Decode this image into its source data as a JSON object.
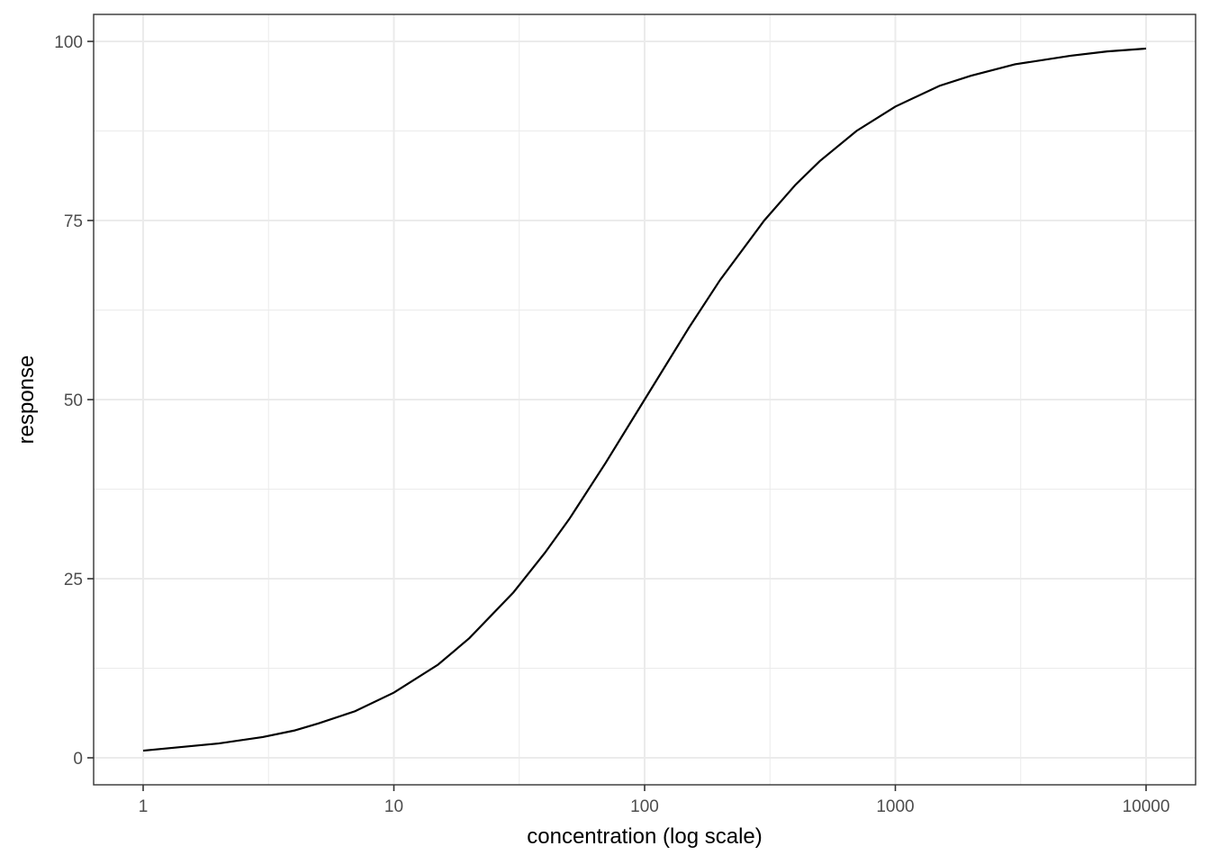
{
  "chart_data": {
    "type": "line",
    "xlabel": "concentration (log scale)",
    "ylabel": "response",
    "x_scale": "log10",
    "xlim": [
      1,
      10000
    ],
    "ylim": [
      0,
      100
    ],
    "x_ticks": [
      1,
      10,
      100,
      1000,
      10000
    ],
    "x_tick_labels": [
      "1",
      "10",
      "100",
      "1000",
      "10000"
    ],
    "y_ticks": [
      0,
      25,
      50,
      75,
      100
    ],
    "y_tick_labels": [
      "0",
      "25",
      "50",
      "75",
      "100"
    ],
    "grid": true,
    "series": [
      {
        "color": "#000000",
        "x": [
          1,
          2,
          3,
          4,
          5,
          7,
          10,
          15,
          20,
          30,
          40,
          50,
          70,
          100,
          150,
          200,
          300,
          400,
          500,
          700,
          1000,
          1500,
          2000,
          3000,
          5000,
          7000,
          10000
        ],
        "y": [
          1.0,
          2.0,
          2.9,
          3.8,
          4.8,
          6.5,
          9.1,
          13.0,
          16.7,
          23.1,
          28.6,
          33.3,
          41.2,
          50.0,
          60.0,
          66.7,
          75.0,
          80.0,
          83.3,
          87.5,
          90.9,
          93.8,
          95.2,
          96.8,
          98.0,
          98.6,
          99.0
        ]
      }
    ]
  }
}
